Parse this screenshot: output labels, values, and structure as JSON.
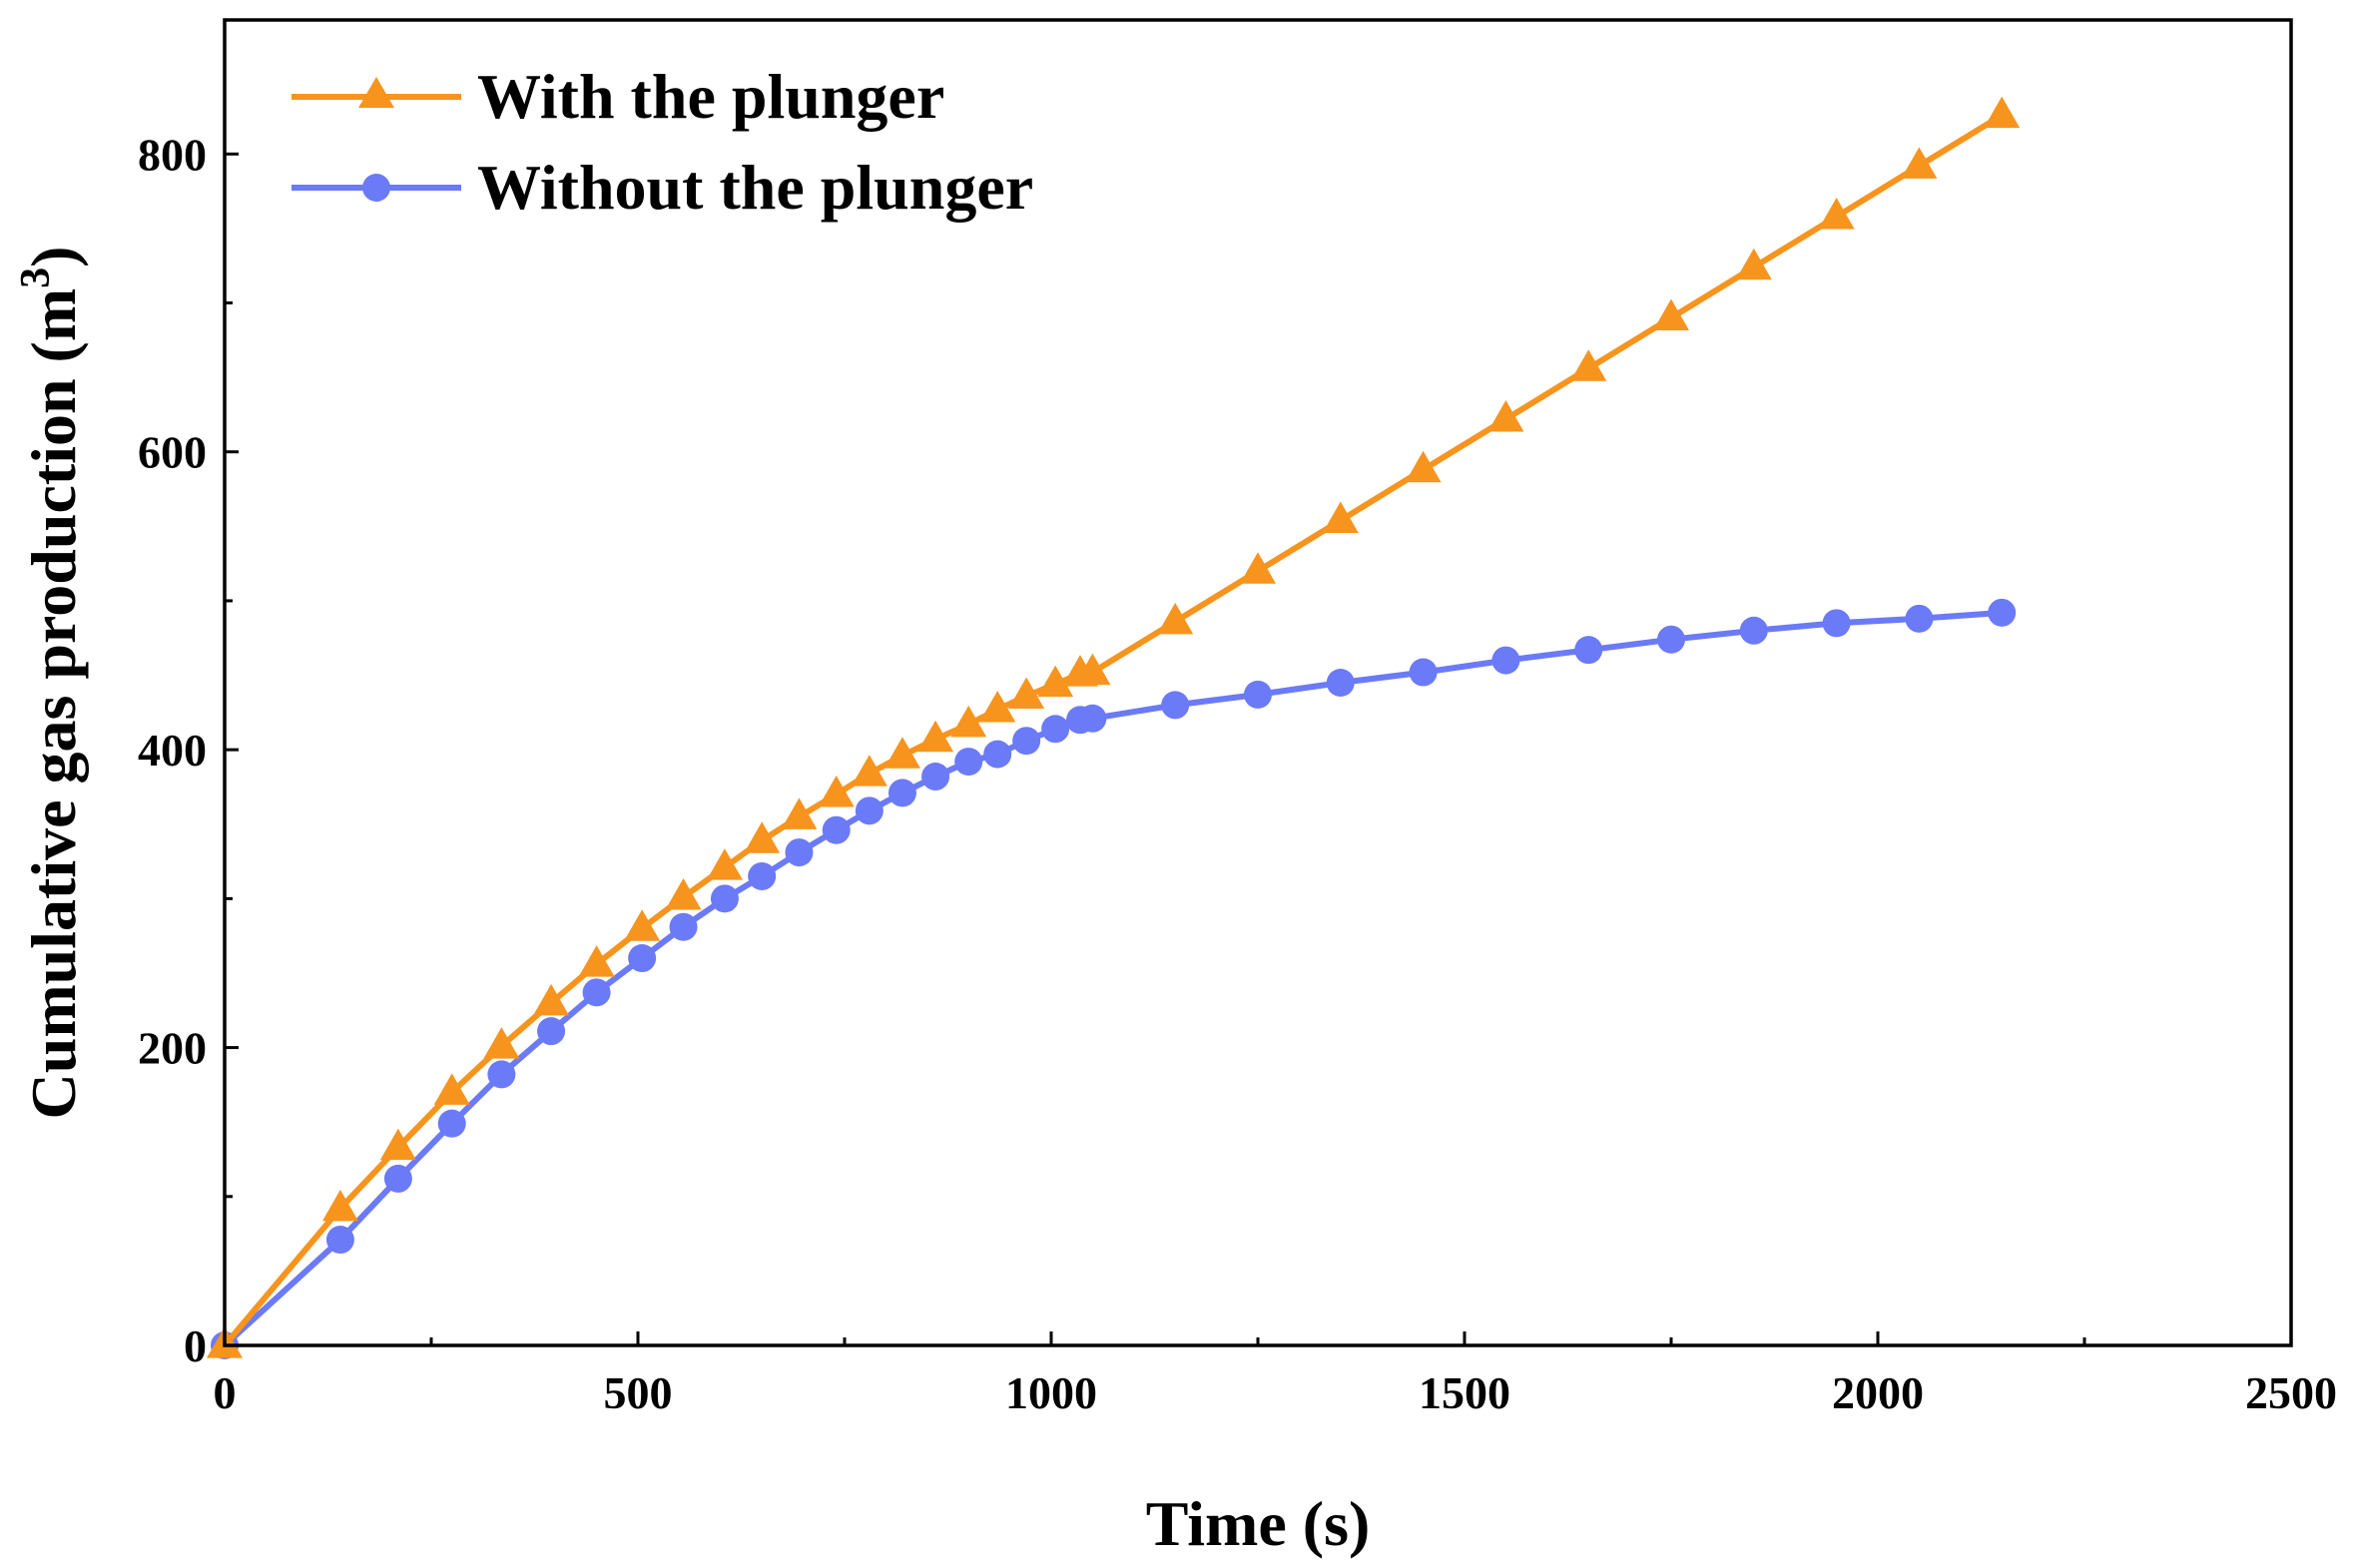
{
  "chart_data": {
    "type": "line",
    "title": "",
    "xlabel": "Time (s)",
    "ylabel": "Cumulative gas production (m",
    "ylabel_superscript": "3",
    "ylabel_close": ")",
    "xlim": [
      0,
      2500
    ],
    "ylim": [
      0,
      890
    ],
    "x_ticks": [
      0,
      500,
      1000,
      1500,
      2000,
      2500
    ],
    "x_tick_labels": [
      "0",
      "500",
      "1000",
      "1500",
      "2000",
      "2500"
    ],
    "x_minor_ticks": [
      250,
      750,
      1250,
      1750,
      2250
    ],
    "y_ticks": [
      0,
      200,
      400,
      600,
      800
    ],
    "y_tick_labels": [
      "0",
      "200",
      "400",
      "600",
      "800"
    ],
    "y_minor_ticks": [
      100,
      300,
      500,
      700
    ],
    "grid": false,
    "legend_position": "top-left",
    "series": [
      {
        "name": "With the plunger",
        "color": "#F7941D",
        "marker": "triangle",
        "x": [
          0,
          140,
          210,
          275,
          335,
          395,
          450,
          505,
          555,
          605,
          650,
          695,
          740,
          780,
          820,
          860,
          900,
          935,
          970,
          1005,
          1035,
          1050,
          1150,
          1250,
          1350,
          1450,
          1550,
          1650,
          1750,
          1850,
          1950,
          2050,
          2150
        ],
        "y": [
          0,
          92,
          133,
          170,
          201,
          230,
          256,
          280,
          301,
          321,
          339,
          355,
          370,
          384,
          396,
          407,
          417,
          427,
          436,
          444,
          451,
          452,
          486,
          520,
          554,
          588,
          622,
          656,
          690,
          724,
          758,
          792,
          826
        ]
      },
      {
        "name": "Without the plunger",
        "color": "#6B7AF7",
        "marker": "circle",
        "x": [
          0,
          140,
          210,
          275,
          335,
          395,
          450,
          505,
          555,
          605,
          650,
          695,
          740,
          780,
          820,
          860,
          900,
          935,
          970,
          1005,
          1035,
          1050,
          1150,
          1250,
          1350,
          1450,
          1550,
          1650,
          1750,
          1850,
          1950,
          2050,
          2150
        ],
        "y": [
          0,
          71,
          112,
          149,
          182,
          211,
          237,
          260,
          281,
          300,
          315,
          331,
          346,
          359,
          371,
          382,
          392,
          397,
          406,
          414,
          420,
          421,
          430,
          437,
          445,
          452,
          460,
          467,
          474,
          480,
          485,
          488,
          492
        ]
      }
    ]
  }
}
